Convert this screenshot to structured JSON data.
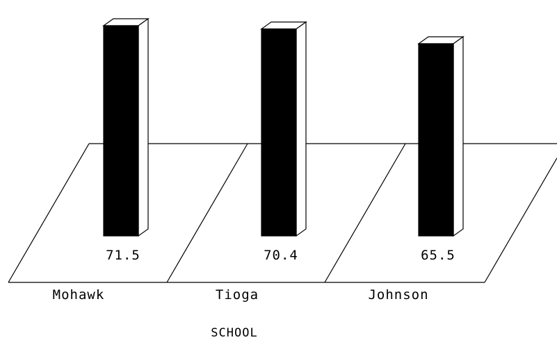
{
  "chart_data": {
    "type": "bar",
    "categories": [
      "Mohawk",
      "Tioga",
      "Johnson"
    ],
    "values": [
      71.5,
      70.4,
      65.5
    ],
    "data_labels": [
      "71.5",
      "70.4",
      "65.5"
    ],
    "xlabel": "SCHOOL",
    "ylabel": "",
    "title": "",
    "grid": false,
    "legend": "none",
    "style": "3d",
    "colors": {
      "bar_front": "#000000",
      "bar_side": "#ffffff",
      "outline": "#000000",
      "background": "#ffffff"
    }
  }
}
